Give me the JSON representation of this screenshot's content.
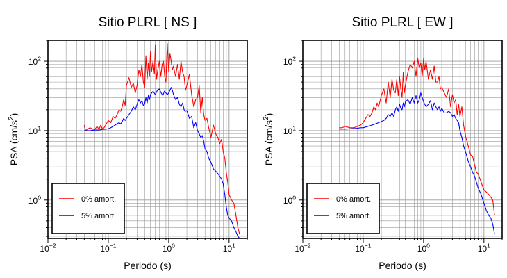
{
  "chart_data": [
    {
      "type": "line",
      "title": "Sitio PLRL [ NS ]",
      "xlabel": "Periodo (s)",
      "ylabel_main": "PSA (cm/s",
      "ylabel_sup": "2",
      "ylabel_close": ")",
      "x_scale": "log",
      "y_scale": "log",
      "xlim": [
        0.01,
        20
      ],
      "ylim": [
        0.28,
        200
      ],
      "x_ticks": [
        {
          "value": 0.01,
          "base": "10",
          "exp": "−2"
        },
        {
          "value": 0.1,
          "base": "10",
          "exp": "−1"
        },
        {
          "value": 1,
          "base": "10",
          "exp": "0"
        },
        {
          "value": 10,
          "base": "10",
          "exp": "1"
        }
      ],
      "y_ticks": [
        {
          "value": 1,
          "base": "10",
          "exp": "0"
        },
        {
          "value": 10,
          "base": "10",
          "exp": "1"
        },
        {
          "value": 100,
          "base": "10",
          "exp": "2"
        }
      ],
      "grid": true,
      "legend_position": "bottom-left",
      "series": [
        {
          "name": "0% amort.",
          "color": "#ff0000",
          "x": [
            0.04,
            0.042,
            0.045,
            0.05,
            0.055,
            0.06,
            0.065,
            0.07,
            0.075,
            0.08,
            0.085,
            0.09,
            0.1,
            0.11,
            0.12,
            0.13,
            0.14,
            0.15,
            0.16,
            0.17,
            0.18,
            0.19,
            0.2,
            0.22,
            0.24,
            0.26,
            0.28,
            0.3,
            0.32,
            0.34,
            0.36,
            0.38,
            0.4,
            0.42,
            0.44,
            0.46,
            0.48,
            0.5,
            0.52,
            0.55,
            0.58,
            0.6,
            0.63,
            0.66,
            0.7,
            0.74,
            0.78,
            0.82,
            0.86,
            0.9,
            0.95,
            1.0,
            1.05,
            1.1,
            1.15,
            1.2,
            1.3,
            1.4,
            1.5,
            1.6,
            1.7,
            1.8,
            1.9,
            2.0,
            2.2,
            2.4,
            2.6,
            2.8,
            3.0,
            3.2,
            3.4,
            3.6,
            3.8,
            4.0,
            4.3,
            4.6,
            5.0,
            5.5,
            6.0,
            6.5,
            7.0,
            7.5,
            8.0,
            8.5,
            9.0,
            9.5,
            10,
            11,
            12,
            13,
            14,
            15
          ],
          "y": [
            12,
            10,
            10.5,
            11,
            10.5,
            10.5,
            11.5,
            10.5,
            12,
            10.5,
            11,
            12,
            14,
            13,
            16,
            15,
            17,
            20,
            19,
            22,
            28,
            23,
            45,
            58,
            42,
            48,
            35,
            45,
            75,
            60,
            90,
            50,
            42,
            120,
            55,
            95,
            60,
            140,
            70,
            100,
            65,
            170,
            55,
            75,
            100,
            60,
            90,
            100,
            60,
            50,
            180,
            70,
            130,
            100,
            75,
            85,
            60,
            90,
            55,
            100,
            70,
            60,
            38,
            45,
            65,
            33,
            22,
            28,
            30,
            45,
            18,
            30,
            17,
            14,
            15,
            11,
            8,
            12,
            9,
            8,
            6.5,
            7.5,
            5,
            4,
            2.5,
            1.8,
            1.2,
            1.0,
            0.9,
            0.6,
            0.4,
            0.32
          ]
        },
        {
          "name": "5% amort.",
          "color": "#0000ff",
          "x": [
            0.04,
            0.045,
            0.05,
            0.06,
            0.07,
            0.08,
            0.09,
            0.1,
            0.11,
            0.12,
            0.13,
            0.14,
            0.15,
            0.16,
            0.17,
            0.18,
            0.19,
            0.2,
            0.22,
            0.24,
            0.26,
            0.28,
            0.3,
            0.32,
            0.34,
            0.36,
            0.38,
            0.4,
            0.42,
            0.44,
            0.46,
            0.48,
            0.5,
            0.55,
            0.6,
            0.65,
            0.7,
            0.75,
            0.8,
            0.85,
            0.9,
            0.95,
            1.0,
            1.05,
            1.1,
            1.15,
            1.2,
            1.3,
            1.4,
            1.5,
            1.6,
            1.7,
            1.8,
            1.9,
            2.0,
            2.2,
            2.4,
            2.6,
            2.8,
            3.0,
            3.2,
            3.4,
            3.6,
            3.8,
            4.0,
            4.3,
            4.6,
            5.0,
            5.5,
            6.0,
            6.5,
            7.0,
            7.5,
            8.0,
            8.5,
            9.0,
            9.5,
            10,
            11,
            12,
            13,
            14,
            15
          ],
          "y": [
            10,
            10,
            10,
            10.2,
            10.2,
            10.4,
            10.5,
            10.6,
            11,
            11.5,
            12,
            12.5,
            13,
            12.5,
            13.5,
            15,
            14,
            15,
            17,
            19,
            22,
            20,
            24,
            28,
            25,
            27,
            23,
            24,
            30,
            25,
            32,
            28,
            33,
            37,
            33,
            38,
            40,
            35,
            32,
            37,
            35,
            33,
            35,
            38,
            42,
            38,
            33,
            28,
            30,
            24,
            22,
            25,
            20,
            19,
            19.5,
            15,
            16,
            11,
            13,
            10,
            9,
            8,
            8.5,
            7,
            5.5,
            5,
            4,
            3.5,
            2.8,
            2.6,
            2.4,
            2.2,
            2.0,
            1.7,
            1.2,
            0.8,
            0.6,
            0.55,
            0.5,
            0.4,
            0.35,
            0.3,
            0.28
          ]
        }
      ]
    },
    {
      "type": "line",
      "title": "Sitio PLRL [ EW ]",
      "xlabel": "Periodo (s)",
      "ylabel_main": "PSA (cm/s",
      "ylabel_sup": "2",
      "ylabel_close": ")",
      "x_scale": "log",
      "y_scale": "log",
      "xlim": [
        0.01,
        20
      ],
      "ylim": [
        0.28,
        200
      ],
      "x_ticks": [
        {
          "value": 0.01,
          "base": "10",
          "exp": "−2"
        },
        {
          "value": 0.1,
          "base": "10",
          "exp": "−1"
        },
        {
          "value": 1,
          "base": "10",
          "exp": "0"
        },
        {
          "value": 10,
          "base": "10",
          "exp": "1"
        }
      ],
      "y_ticks": [
        {
          "value": 1,
          "base": "10",
          "exp": "0"
        },
        {
          "value": 10,
          "base": "10",
          "exp": "1"
        },
        {
          "value": 100,
          "base": "10",
          "exp": "2"
        }
      ],
      "grid": true,
      "legend_position": "bottom-left",
      "series": [
        {
          "name": "0% amort.",
          "color": "#ff0000",
          "x": [
            0.04,
            0.045,
            0.05,
            0.06,
            0.07,
            0.08,
            0.09,
            0.1,
            0.11,
            0.12,
            0.13,
            0.14,
            0.15,
            0.16,
            0.17,
            0.18,
            0.2,
            0.22,
            0.24,
            0.26,
            0.28,
            0.3,
            0.32,
            0.34,
            0.36,
            0.38,
            0.4,
            0.42,
            0.44,
            0.46,
            0.48,
            0.5,
            0.55,
            0.6,
            0.65,
            0.7,
            0.75,
            0.8,
            0.85,
            0.9,
            0.95,
            1.0,
            1.05,
            1.1,
            1.2,
            1.3,
            1.4,
            1.5,
            1.6,
            1.7,
            1.8,
            1.9,
            2.0,
            2.2,
            2.4,
            2.6,
            2.8,
            3.0,
            3.2,
            3.4,
            3.6,
            3.8,
            4.0,
            4.3,
            4.6,
            5.0,
            5.5,
            6.0,
            6.5,
            7.0,
            7.5,
            8.0,
            9.0,
            10,
            11,
            12,
            13,
            14,
            15
          ],
          "y": [
            11,
            11,
            11.5,
            11,
            11,
            11.5,
            12,
            13,
            15,
            17,
            16,
            18,
            22,
            20,
            25,
            22,
            32,
            40,
            25,
            50,
            30,
            55,
            38,
            35,
            55,
            32,
            60,
            40,
            30,
            70,
            35,
            45,
            70,
            90,
            80,
            100,
            60,
            110,
            80,
            95,
            60,
            110,
            75,
            100,
            55,
            75,
            55,
            85,
            50,
            50,
            60,
            40,
            42,
            35,
            30,
            40,
            22,
            33,
            25,
            28,
            17,
            24,
            16,
            22,
            12,
            8,
            6,
            4.5,
            4.2,
            3.2,
            2.5,
            2.4,
            1.8,
            1.4,
            1.3,
            1.2,
            1.1,
            1.0,
            0.6
          ]
        },
        {
          "name": "5% amort.",
          "color": "#0000ff",
          "x": [
            0.04,
            0.05,
            0.06,
            0.07,
            0.08,
            0.09,
            0.1,
            0.12,
            0.14,
            0.16,
            0.18,
            0.2,
            0.22,
            0.24,
            0.26,
            0.28,
            0.3,
            0.32,
            0.34,
            0.36,
            0.38,
            0.4,
            0.42,
            0.44,
            0.46,
            0.48,
            0.5,
            0.55,
            0.6,
            0.65,
            0.7,
            0.75,
            0.8,
            0.85,
            0.9,
            0.95,
            1.0,
            1.1,
            1.2,
            1.3,
            1.4,
            1.5,
            1.6,
            1.7,
            1.8,
            1.9,
            2.0,
            2.2,
            2.4,
            2.6,
            2.8,
            3.0,
            3.2,
            3.4,
            3.6,
            3.8,
            4.0,
            4.3,
            4.6,
            5.0,
            5.5,
            6.0,
            6.5,
            7.0,
            7.5,
            8.0,
            9.0,
            10,
            11,
            12,
            13,
            14,
            15
          ],
          "y": [
            10.5,
            10.5,
            10.6,
            10.7,
            10.8,
            11,
            11,
            11.5,
            12,
            12.5,
            13,
            13.5,
            14,
            15,
            17,
            16,
            18,
            16,
            20,
            22,
            19,
            24,
            21,
            20,
            25,
            22,
            26,
            28,
            24,
            30,
            25,
            32,
            25,
            28,
            35,
            30,
            26,
            22,
            24,
            27,
            20,
            25,
            22,
            20,
            22,
            19,
            21,
            18,
            18,
            19,
            18,
            16,
            17,
            15,
            14,
            13,
            10,
            8,
            6,
            4.8,
            3.6,
            3.0,
            2.5,
            2.2,
            1.8,
            1.5,
            1.2,
            0.9,
            0.7,
            0.6,
            0.55,
            0.45,
            0.32
          ]
        }
      ]
    }
  ]
}
